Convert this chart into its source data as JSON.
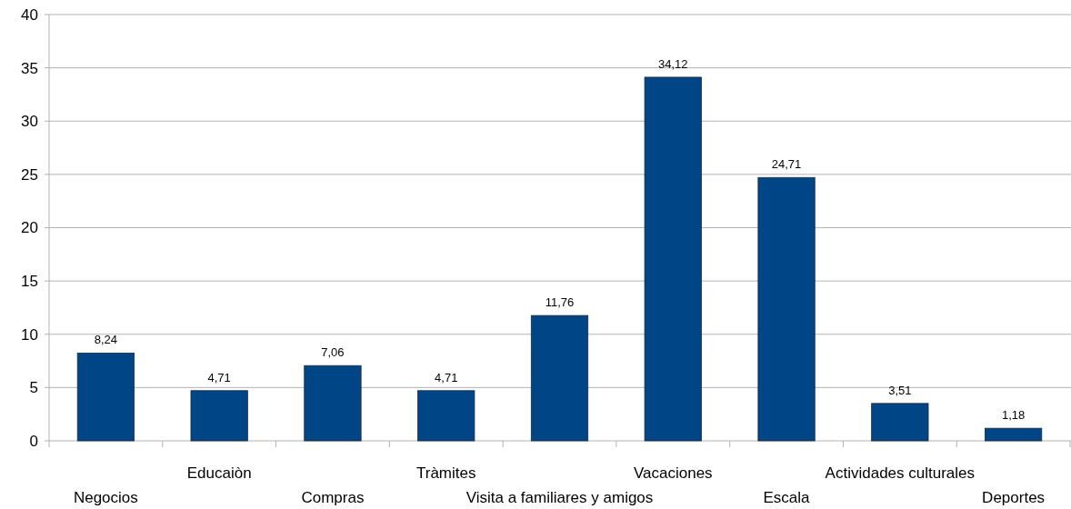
{
  "chart_data": {
    "type": "bar",
    "categories": [
      "Negocios",
      "Educaiòn",
      "Compras",
      "Tràmites",
      "Visita a familiares y amigos",
      "Vacaciones",
      "Escala",
      "Actividades culturales",
      "Deportes"
    ],
    "values": [
      8.24,
      4.71,
      7.06,
      4.71,
      11.76,
      34.12,
      24.71,
      3.51,
      1.18
    ],
    "value_labels": [
      "8,24",
      "4,71",
      "7,06",
      "4,71",
      "11,76",
      "34,12",
      "24,71",
      "3,51",
      "1,18"
    ],
    "color": "#004586",
    "ylim": [
      0,
      40
    ],
    "yticks": [
      0,
      5,
      10,
      15,
      20,
      25,
      30,
      35,
      40
    ],
    "grid": "y"
  }
}
